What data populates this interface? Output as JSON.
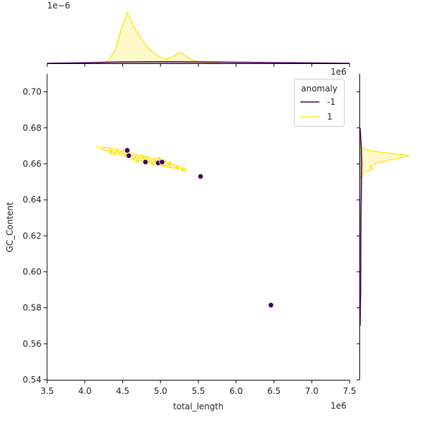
{
  "chart_data": {
    "type": "scatter",
    "xlabel": "total_length",
    "ylabel": "GC_Content",
    "x_offset_label": "1e6",
    "top_offset_label": "1e−6",
    "right_offset_label": "1e6",
    "xlim": [
      3500000,
      7500000
    ],
    "ylim": [
      0.54,
      0.71
    ],
    "x_ticks": [
      3500000,
      4000000,
      4500000,
      5000000,
      5500000,
      6000000,
      6500000,
      7000000,
      7500000
    ],
    "x_tick_labels": [
      "3.5",
      "4.0",
      "4.5",
      "5.0",
      "5.5",
      "6.0",
      "6.5",
      "7.0",
      "7.5"
    ],
    "y_ticks": [
      0.54,
      0.56,
      0.58,
      0.6,
      0.62,
      0.64,
      0.66,
      0.68,
      0.7
    ],
    "y_tick_labels": [
      "0.54",
      "0.56",
      "0.58",
      "0.60",
      "0.62",
      "0.64",
      "0.66",
      "0.68",
      "0.70"
    ],
    "legend": {
      "title": "anomaly",
      "placement": "top-right",
      "entries": [
        {
          "label": "-1",
          "color": "#440154"
        },
        {
          "label": "1",
          "color": "#fde725"
        }
      ]
    },
    "series": [
      {
        "name": "-1",
        "color": "#440154",
        "points": [
          [
            4560000,
            0.6675
          ],
          [
            4580000,
            0.6645
          ],
          [
            4800000,
            0.661
          ],
          [
            4970000,
            0.6605
          ],
          [
            5020000,
            0.661
          ],
          [
            5530000,
            0.653
          ],
          [
            6460000,
            0.5815
          ]
        ]
      },
      {
        "name": "1",
        "color": "#fde725",
        "points": [
          [
            4350000,
            0.6665
          ],
          [
            4400000,
            0.666
          ],
          [
            4430000,
            0.667
          ],
          [
            4470000,
            0.666
          ],
          [
            4500000,
            0.6665
          ],
          [
            4520000,
            0.6655
          ],
          [
            4540000,
            0.665
          ],
          [
            4600000,
            0.6645
          ],
          [
            4650000,
            0.663
          ],
          [
            4680000,
            0.664
          ],
          [
            4700000,
            0.662
          ],
          [
            4720000,
            0.6635
          ],
          [
            4750000,
            0.664
          ],
          [
            4780000,
            0.6635
          ],
          [
            4820000,
            0.663
          ],
          [
            4850000,
            0.662
          ],
          [
            4870000,
            0.661
          ],
          [
            4900000,
            0.6605
          ],
          [
            4930000,
            0.662
          ],
          [
            4980000,
            0.6625
          ],
          [
            5050000,
            0.661
          ],
          [
            5120000,
            0.66
          ],
          [
            5220000,
            0.658
          ],
          [
            5300000,
            0.657
          ]
        ]
      }
    ],
    "marginal_top": {
      "series": [
        {
          "name": "1",
          "color": "#fde725",
          "x": [
            4150000,
            4300000,
            4400000,
            4480000,
            4560000,
            4650000,
            4750000,
            4850000,
            4950000,
            5050000,
            5150000,
            5250000,
            5300000,
            5400000,
            5500000,
            5650000,
            5800000
          ],
          "density": [
            0.0,
            0.15,
            1.1,
            2.9,
            4.3,
            3.1,
            2.0,
            1.2,
            0.7,
            0.35,
            0.5,
            0.95,
            0.75,
            0.35,
            0.12,
            0.03,
            0.0
          ]
        },
        {
          "name": "-1",
          "color": "#440154",
          "x": [
            3500000,
            4000000,
            4500000,
            5000000,
            5500000,
            6000000,
            6500000,
            7000000,
            7500000
          ],
          "density": [
            0.0,
            0.05,
            0.12,
            0.14,
            0.12,
            0.09,
            0.06,
            0.03,
            0.0
          ]
        }
      ]
    },
    "marginal_right": {
      "series": [
        {
          "name": "1",
          "color": "#fde725",
          "y": [
            0.652,
            0.655,
            0.657,
            0.6585,
            0.66,
            0.6615,
            0.663,
            0.6645,
            0.6655,
            0.6665,
            0.6675,
            0.669,
            0.671
          ],
          "density": [
            0.0,
            0.2,
            0.9,
            0.7,
            1.1,
            1.7,
            2.6,
            3.5,
            2.5,
            1.4,
            0.6,
            0.15,
            0.0
          ]
        },
        {
          "name": "-1",
          "color": "#440154",
          "y": [
            0.57,
            0.59,
            0.61,
            0.63,
            0.65,
            0.66,
            0.67,
            0.68
          ],
          "density": [
            0.0,
            0.04,
            0.05,
            0.06,
            0.1,
            0.12,
            0.08,
            0.0
          ]
        }
      ]
    }
  }
}
